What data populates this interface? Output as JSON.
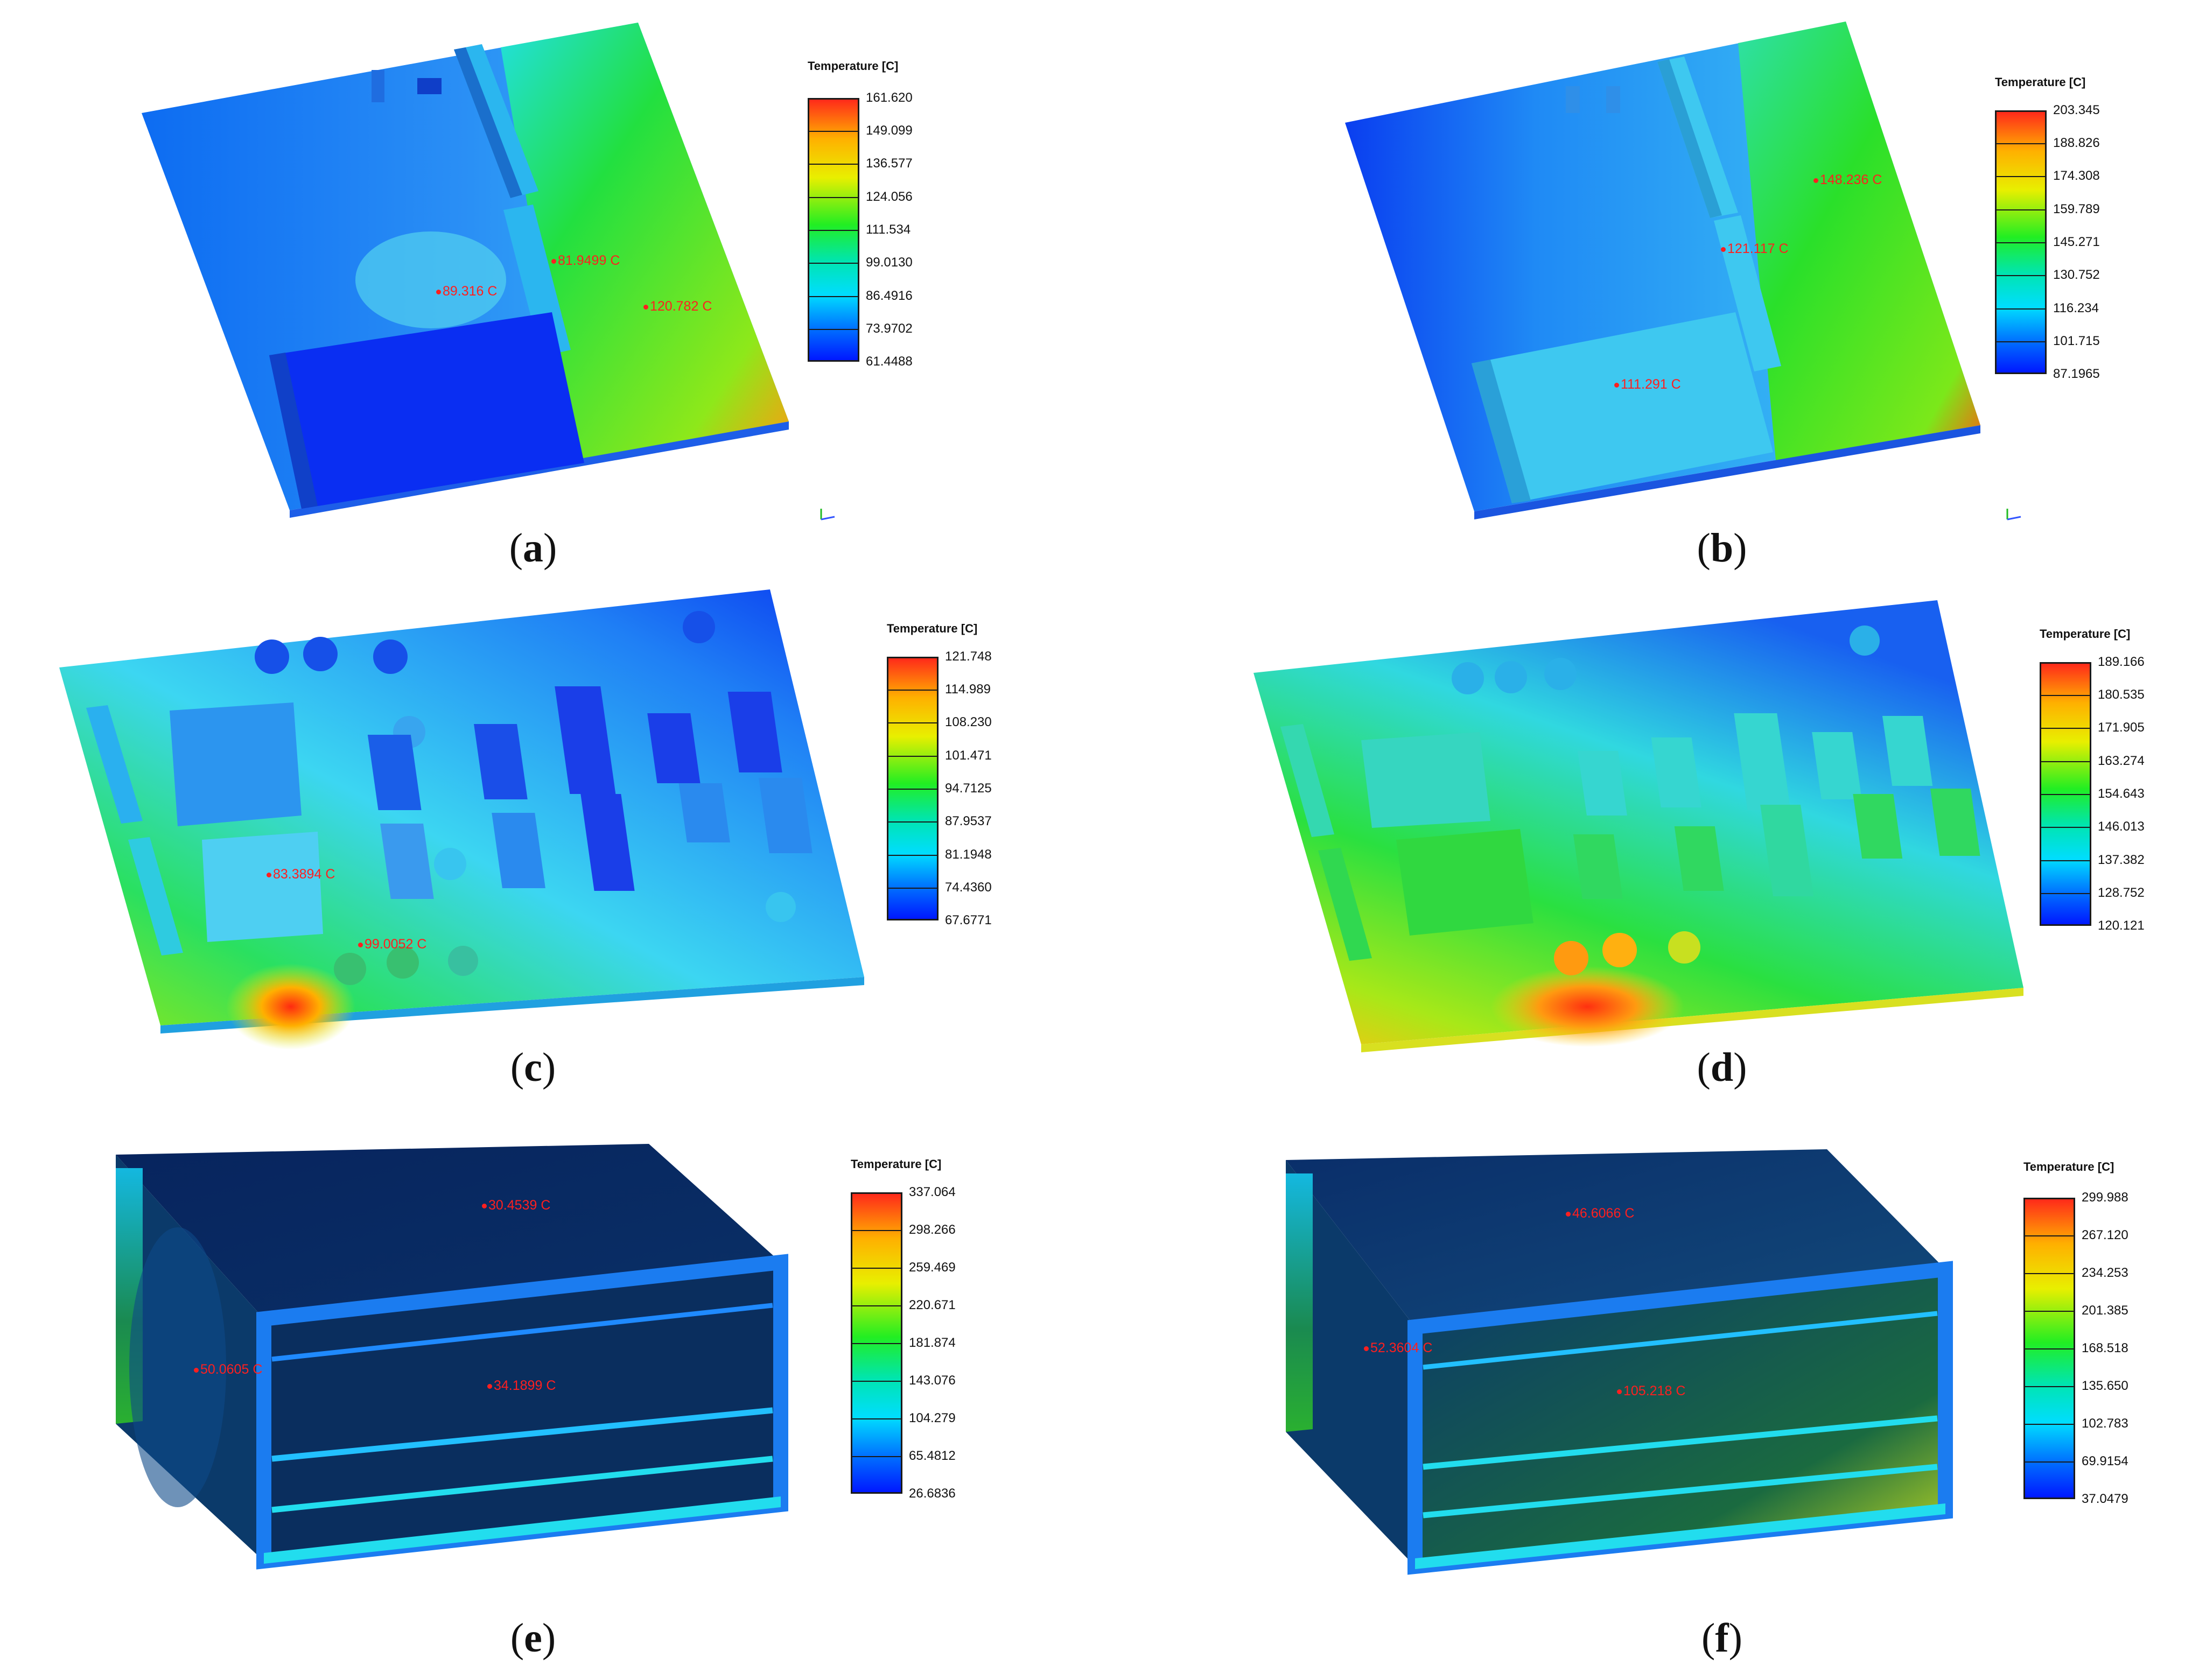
{
  "legend_title": "Temperature [C]",
  "panels": {
    "a": {
      "caption_letter": "a",
      "ticks": [
        "161.620",
        "149.099",
        "136.577",
        "124.056",
        "111.534",
        "99.0130",
        "86.4916",
        "73.9702",
        "61.4488"
      ],
      "probes": [
        "89.316 C",
        "81.9499 C",
        "120.782 C"
      ]
    },
    "b": {
      "caption_letter": "b",
      "ticks": [
        "203.345",
        "188.826",
        "174.308",
        "159.789",
        "145.271",
        "130.752",
        "116.234",
        "101.715",
        "87.1965"
      ],
      "probes": [
        "148.236 C",
        "121.117 C",
        "111.291 C"
      ]
    },
    "c": {
      "caption_letter": "c",
      "ticks": [
        "121.748",
        "114.989",
        "108.230",
        "101.471",
        "94.7125",
        "87.9537",
        "81.1948",
        "74.4360",
        "67.6771"
      ],
      "probes": [
        "83.3894 C",
        "99.0052 C"
      ]
    },
    "d": {
      "caption_letter": "d",
      "ticks": [
        "189.166",
        "180.535",
        "171.905",
        "163.274",
        "154.643",
        "146.013",
        "137.382",
        "128.752",
        "120.121"
      ],
      "probes": []
    },
    "e": {
      "caption_letter": "e",
      "ticks": [
        "337.064",
        "298.266",
        "259.469",
        "220.671",
        "181.874",
        "143.076",
        "104.279",
        "65.4812",
        "26.6836"
      ],
      "probes": [
        "30.4539 C",
        "50.0605 C",
        "34.1899 C"
      ]
    },
    "f": {
      "caption_letter": "f",
      "ticks": [
        "299.988",
        "267.120",
        "234.253",
        "201.385",
        "168.518",
        "135.650",
        "102.783",
        "69.9154",
        "37.0479"
      ],
      "probes": [
        "46.6066 C",
        "52.3604 C",
        "105.218 C"
      ]
    }
  },
  "colors": {
    "hot": "#ff2a1a",
    "warm": "#ffb000",
    "mid": "#22ee22",
    "cool": "#00ddff",
    "cold": "#0018ff",
    "probe": "#ff1f1f"
  }
}
